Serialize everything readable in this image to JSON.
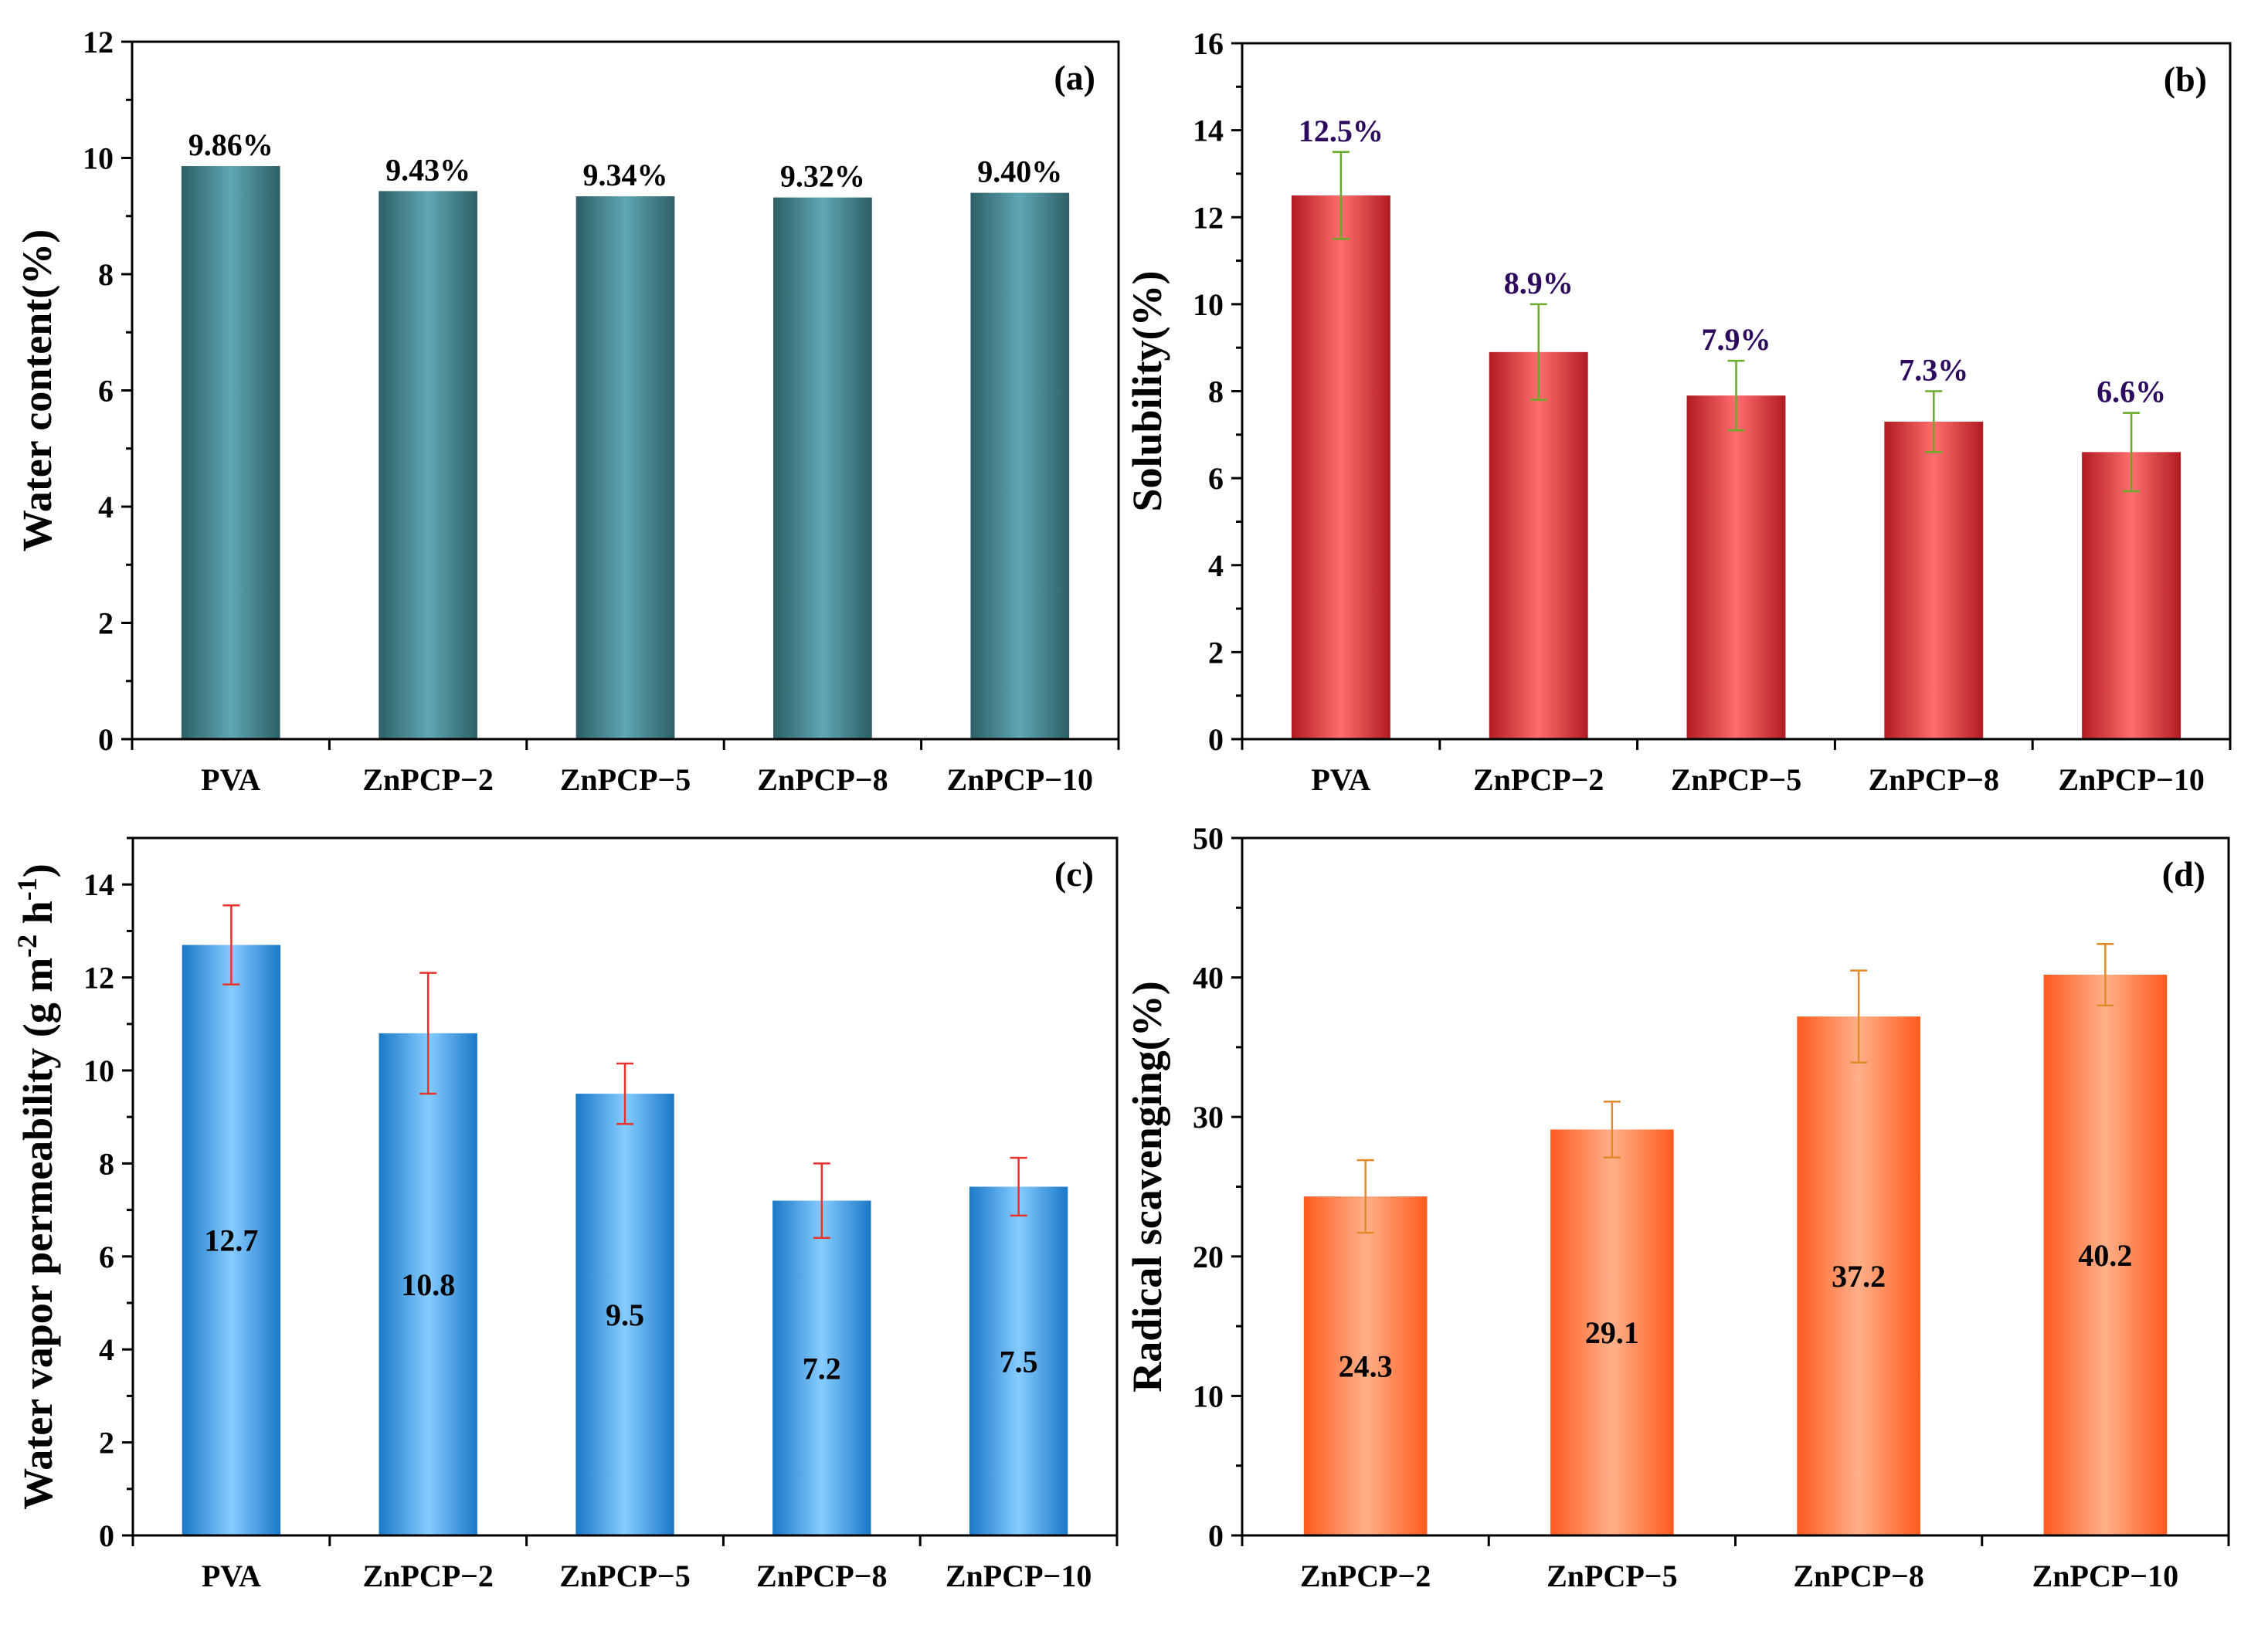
{
  "chart_data": [
    {
      "panel": "(a)",
      "type": "bar",
      "ylabel": "Water content(%)",
      "categories": [
        "PVA",
        "ZnPCP−2",
        "ZnPCP−5",
        "ZnPCP−8",
        "ZnPCP−10"
      ],
      "values": [
        9.86,
        9.43,
        9.34,
        9.32,
        9.4
      ],
      "errors": null,
      "data_labels": [
        "9.86%",
        "9.43%",
        "9.34%",
        "9.32%",
        "9.40%"
      ],
      "label_position": "above",
      "ylim": [
        0,
        12
      ],
      "yticks": [
        0,
        2,
        4,
        6,
        8,
        10,
        12
      ],
      "bar_colors": {
        "edge": "#2d5f66",
        "center": "#5fa7b2"
      },
      "error_color": null,
      "label_color": "#000000"
    },
    {
      "panel": "(b)",
      "type": "bar",
      "ylabel": "Solubility(%)",
      "categories": [
        "PVA",
        "ZnPCP−2",
        "ZnPCP−5",
        "ZnPCP−8",
        "ZnPCP−10"
      ],
      "values": [
        12.5,
        8.9,
        7.9,
        7.3,
        6.6
      ],
      "errors": [
        1.0,
        1.1,
        0.8,
        0.7,
        0.9
      ],
      "data_labels": [
        "12.5%",
        "8.9%",
        "7.9%",
        "7.3%",
        "6.6%"
      ],
      "label_position": "above",
      "ylim": [
        0,
        16
      ],
      "yticks": [
        0,
        2,
        4,
        6,
        8,
        10,
        12,
        14,
        16
      ],
      "bar_colors": {
        "edge": "#b01c22",
        "center": "#ff6e6e"
      },
      "error_color": "#6aaa2a",
      "label_color": "#2d0a5e"
    },
    {
      "panel": "(c)",
      "type": "bar",
      "ylabel": "Water vapor permeability (g m",
      "ylabel_sup1": "-2",
      "ylabel_mid": " h",
      "ylabel_sup2": "-1",
      "ylabel_end": ")",
      "categories": [
        "PVA",
        "ZnPCP−2",
        "ZnPCP−5",
        "ZnPCP−8",
        "ZnPCP−10"
      ],
      "values": [
        12.7,
        10.8,
        9.5,
        7.2,
        7.5
      ],
      "errors": [
        0.85,
        1.3,
        0.65,
        0.8,
        0.62
      ],
      "data_labels": [
        "12.7",
        "10.8",
        "9.5",
        "7.2",
        "7.5"
      ],
      "label_position": "inside",
      "ylim": [
        0,
        15
      ],
      "yticks": [
        0,
        2,
        4,
        6,
        8,
        10,
        12,
        14
      ],
      "bar_colors": {
        "edge": "#1a78c6",
        "center": "#86ccff"
      },
      "error_color": "#e8322a",
      "label_color": "#000000"
    },
    {
      "panel": "(d)",
      "type": "bar",
      "ylabel": "Radical scavenging(%)",
      "categories": [
        "ZnPCP−2",
        "ZnPCP−5",
        "ZnPCP−8",
        "ZnPCP−10"
      ],
      "values": [
        24.3,
        29.1,
        37.2,
        40.2
      ],
      "errors": [
        2.6,
        2.0,
        3.3,
        2.2
      ],
      "data_labels": [
        "24.3",
        "29.1",
        "37.2",
        "40.2"
      ],
      "label_position": "inside",
      "ylim": [
        0,
        50
      ],
      "yticks": [
        0,
        10,
        20,
        30,
        40,
        50
      ],
      "bar_colors": {
        "edge": "#ff5a1e",
        "center": "#ffb089"
      },
      "error_color": "#e08a2a",
      "label_color": "#000000"
    }
  ]
}
